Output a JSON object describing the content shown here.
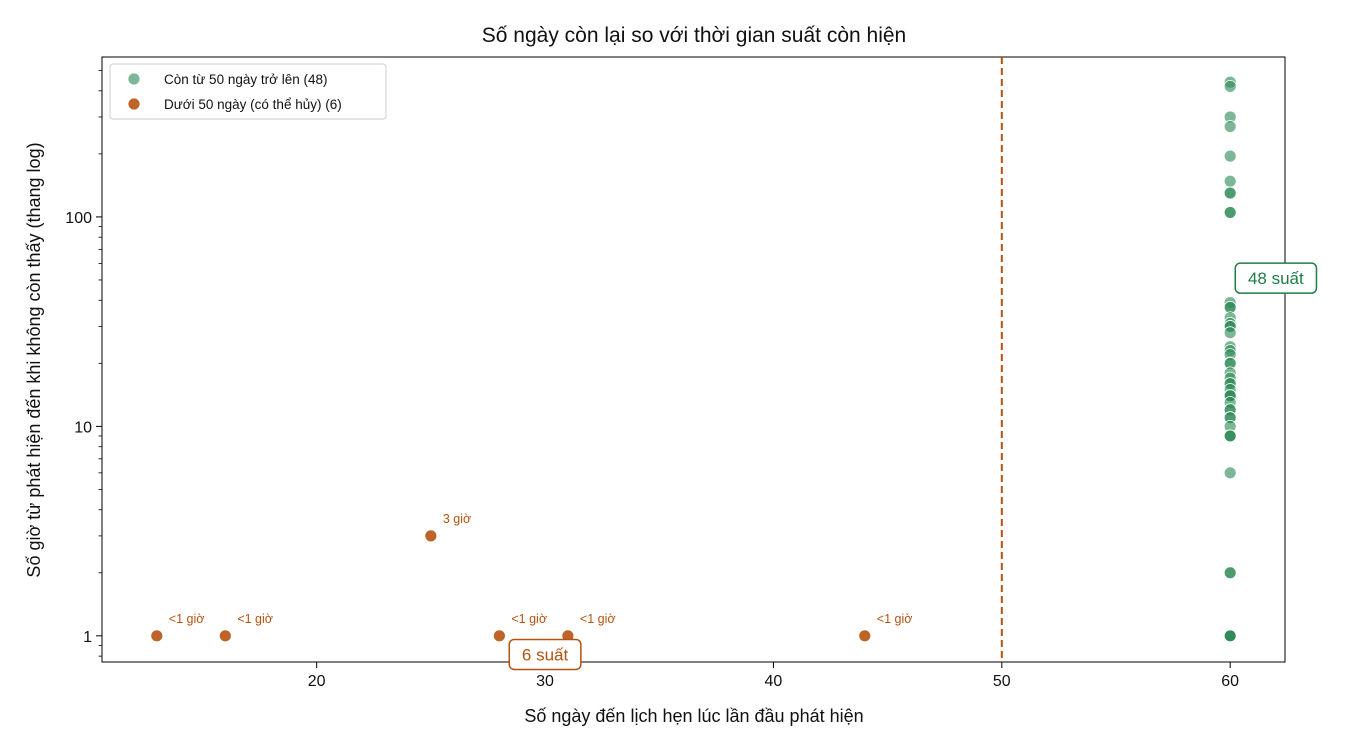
{
  "chart_data": {
    "type": "scatter",
    "title": "Số ngày còn lại so với thời gian suất còn hiện",
    "xlabel": "Số ngày đến lịch hẹn lúc lần đầu phát hiện",
    "ylabel": "Số giờ từ phát hiện đến khi không còn thấy (thang log)",
    "xlim": [
      10.6,
      62.4
    ],
    "ylim": [
      0.75,
      580
    ],
    "yscale": "log",
    "xticks": [
      20,
      30,
      40,
      50,
      60
    ],
    "yticks": [
      1,
      10,
      100
    ],
    "ytick_labels": [
      "1",
      "10",
      "100"
    ],
    "grid": false,
    "legend_position": "top-left",
    "threshold_x": 50,
    "threshold_color": "#b5520f",
    "series": [
      {
        "name": "Còn từ 50 ngày trở lên (48)",
        "color": "#2e8b57",
        "alpha": 0.62,
        "x": [
          60,
          60,
          60,
          60,
          60,
          60,
          60,
          60,
          60,
          60,
          60,
          60,
          60,
          60,
          60,
          60,
          60,
          60,
          60,
          60,
          60,
          60,
          60,
          60,
          60,
          60,
          60,
          60,
          60,
          60,
          60,
          60,
          60,
          60,
          60,
          60,
          60,
          60,
          60,
          60,
          60,
          60,
          60,
          60,
          60,
          60,
          60,
          60
        ],
        "y": [
          440,
          420,
          300,
          270,
          195,
          148,
          130,
          130,
          105,
          105,
          39,
          37,
          37,
          33,
          31,
          30,
          30,
          28,
          24,
          23,
          22,
          20,
          20,
          18,
          17,
          16,
          16,
          15,
          14,
          14,
          14,
          13,
          12,
          12,
          11,
          11,
          10,
          9,
          9,
          9,
          6,
          2,
          2,
          1,
          1,
          1,
          1,
          1
        ]
      },
      {
        "name": "Dưới 50 ngày (có thể hủy) (6)",
        "color": "#bf6428",
        "alpha": 1,
        "x": [
          13,
          16,
          25,
          28,
          31,
          44
        ],
        "y": [
          1,
          1,
          3,
          1,
          1,
          1
        ],
        "labels": [
          "<1 giờ",
          "<1 giờ",
          "3 giờ",
          "<1 giờ",
          "<1 giờ",
          "<1 giờ"
        ]
      }
    ],
    "annotations": [
      {
        "text": "48 suất",
        "x": 62,
        "y": 51,
        "color": "#1e7d45"
      },
      {
        "text": "6 suất",
        "x": 30,
        "y": 0.815,
        "color": "#b5520f"
      }
    ]
  }
}
